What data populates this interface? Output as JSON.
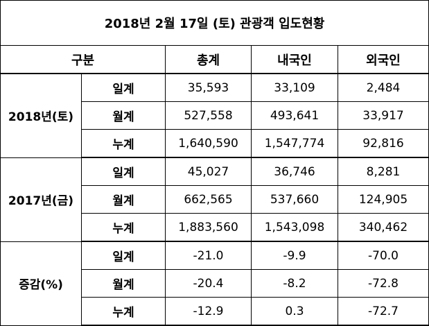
{
  "title": "2018년 2월 17일 (토) 관광객 입도현황",
  "header": [
    "구분",
    "총계",
    "내국인",
    "외국인"
  ],
  "groups": [
    {
      "label": "2018년(토)",
      "rows": [
        {
          "label": "일계",
          "values": [
            "35,593",
            "33,109",
            "2,484"
          ]
        },
        {
          "label": "월계",
          "values": [
            "527,558",
            "493,641",
            "33,917"
          ]
        },
        {
          "label": "누계",
          "values": [
            "1,640,590",
            "1,547,774",
            "92,816"
          ]
        }
      ]
    },
    {
      "label": "2017년(금)",
      "rows": [
        {
          "label": "일계",
          "values": [
            "45,027",
            "36,746",
            "8,281"
          ]
        },
        {
          "label": "월계",
          "values": [
            "662,565",
            "537,660",
            "124,905"
          ]
        },
        {
          "label": "누계",
          "values": [
            "1,883,560",
            "1,543,098",
            "340,462"
          ]
        }
      ]
    },
    {
      "label": "증감(%)",
      "rows": [
        {
          "label": "일계",
          "values": [
            "-21.0",
            "-9.9",
            "-70.0"
          ]
        },
        {
          "label": "월계",
          "values": [
            "-20.4",
            "-8.2",
            "-72.8"
          ]
        },
        {
          "label": "누계",
          "values": [
            "-12.9",
            "0.3",
            "-72.7"
          ]
        }
      ]
    }
  ]
}
